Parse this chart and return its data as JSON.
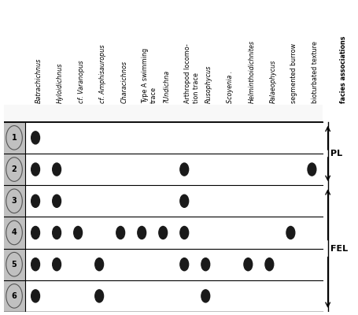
{
  "columns": [
    "Batrachichnus",
    "Hyloidichnus",
    "cf. Varanopus",
    "cf. Amphisauropus",
    "Characichnos",
    "Type A swimming\ntrace",
    "?Undichna",
    "Arthropod locomo-\ntion trace",
    "Rusophycus",
    "Scoyenia .",
    "Helminthoidichnites",
    "Palaeophycus",
    "segmented burrow",
    "bioturbated texture",
    "facies associations"
  ],
  "col_italic": [
    true,
    true,
    true,
    true,
    true,
    false,
    true,
    false,
    true,
    true,
    true,
    true,
    false,
    false,
    false
  ],
  "rows": [
    "1",
    "2",
    "3",
    "4",
    "5",
    "6"
  ],
  "dots": {
    "1": [
      0
    ],
    "2": [
      0,
      1,
      7,
      13
    ],
    "3": [
      0,
      1,
      7
    ],
    "4": [
      0,
      1,
      2,
      4,
      5,
      6,
      7,
      12
    ],
    "5": [
      0,
      1,
      3,
      7,
      8,
      10,
      11
    ],
    "6": [
      0,
      3,
      8
    ]
  },
  "PL_rows": [
    0,
    1
  ],
  "FEL_rows": [
    2,
    3,
    4,
    5
  ],
  "background_color": "#ffffff",
  "row_header_bg": "#c0c0c0",
  "dot_color": "#1a1a1a",
  "grid_color": "#000000"
}
